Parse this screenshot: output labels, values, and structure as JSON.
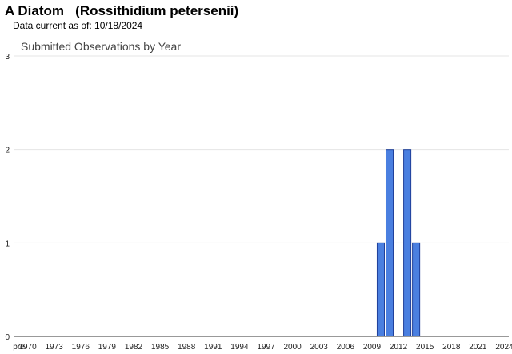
{
  "header": {
    "title": "A Diatom   (Rossithidium petersenii)",
    "data_current_label": "Data current as of: 10/18/2024"
  },
  "colors": {
    "bar_fill": "#4a7fe0",
    "bar_stroke": "#1f3f99"
  },
  "chart_data": {
    "type": "bar",
    "title": "Submitted Observations by Year",
    "xlabel": "",
    "ylabel": "",
    "ylim": [
      0,
      3
    ],
    "yticks": [
      0,
      1,
      2,
      3
    ],
    "grid": true,
    "categories": [
      "pre",
      "1970",
      "1971",
      "1972",
      "1973",
      "1974",
      "1975",
      "1976",
      "1977",
      "1978",
      "1979",
      "1980",
      "1981",
      "1982",
      "1983",
      "1984",
      "1985",
      "1986",
      "1987",
      "1988",
      "1989",
      "1990",
      "1991",
      "1992",
      "1993",
      "1994",
      "1995",
      "1996",
      "1997",
      "1998",
      "1999",
      "2000",
      "2001",
      "2002",
      "2003",
      "2004",
      "2005",
      "2006",
      "2007",
      "2008",
      "2009",
      "2010",
      "2011",
      "2012",
      "2013",
      "2014",
      "2015",
      "2016",
      "2017",
      "2018",
      "2019",
      "2020",
      "2021",
      "2022",
      "2023",
      "2024"
    ],
    "tick_labels": [
      "pre",
      "1970",
      "1973",
      "1976",
      "1979",
      "1982",
      "1985",
      "1988",
      "1991",
      "1994",
      "1997",
      "2000",
      "2003",
      "2006",
      "2009",
      "2012",
      "2015",
      "2018",
      "2021",
      "2024"
    ],
    "values": [
      0,
      0,
      0,
      0,
      0,
      0,
      0,
      0,
      0,
      0,
      0,
      0,
      0,
      0,
      0,
      0,
      0,
      0,
      0,
      0,
      0,
      0,
      0,
      0,
      0,
      0,
      0,
      0,
      0,
      0,
      0,
      0,
      0,
      0,
      0,
      0,
      0,
      0,
      0,
      0,
      0,
      1,
      2,
      0,
      2,
      1,
      0,
      0,
      0,
      0,
      0,
      0,
      0,
      0,
      0,
      0
    ]
  }
}
